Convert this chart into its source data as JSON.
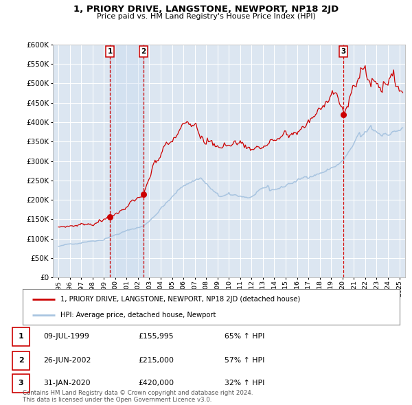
{
  "title": "1, PRIORY DRIVE, LANGSTONE, NEWPORT, NP18 2JD",
  "subtitle": "Price paid vs. HM Land Registry's House Price Index (HPI)",
  "background_color": "#ffffff",
  "plot_background": "#dce6f1",
  "grid_color": "#ffffff",
  "red_color": "#cc0000",
  "blue_color": "#a8c4e0",
  "shade_color": "#dce6f1",
  "sale_points": [
    {
      "date_num": 1999.54,
      "value": 155995,
      "label": "1"
    },
    {
      "date_num": 2002.49,
      "value": 215000,
      "label": "2"
    },
    {
      "date_num": 2020.08,
      "value": 420000,
      "label": "3"
    }
  ],
  "legend_entries": [
    "1, PRIORY DRIVE, LANGSTONE, NEWPORT, NP18 2JD (detached house)",
    "HPI: Average price, detached house, Newport"
  ],
  "table_rows": [
    {
      "num": "1",
      "date": "09-JUL-1999",
      "price": "£155,995",
      "hpi": "65% ↑ HPI"
    },
    {
      "num": "2",
      "date": "26-JUN-2002",
      "price": "£215,000",
      "hpi": "57% ↑ HPI"
    },
    {
      "num": "3",
      "date": "31-JAN-2020",
      "price": "£420,000",
      "hpi": "32% ↑ HPI"
    }
  ],
  "footer": "Contains HM Land Registry data © Crown copyright and database right 2024.\nThis data is licensed under the Open Government Licence v3.0.",
  "ylim": [
    0,
    600000
  ],
  "yticks": [
    0,
    50000,
    100000,
    150000,
    200000,
    250000,
    300000,
    350000,
    400000,
    450000,
    500000,
    550000,
    600000
  ],
  "xlim_start": 1994.5,
  "xlim_end": 2025.5
}
